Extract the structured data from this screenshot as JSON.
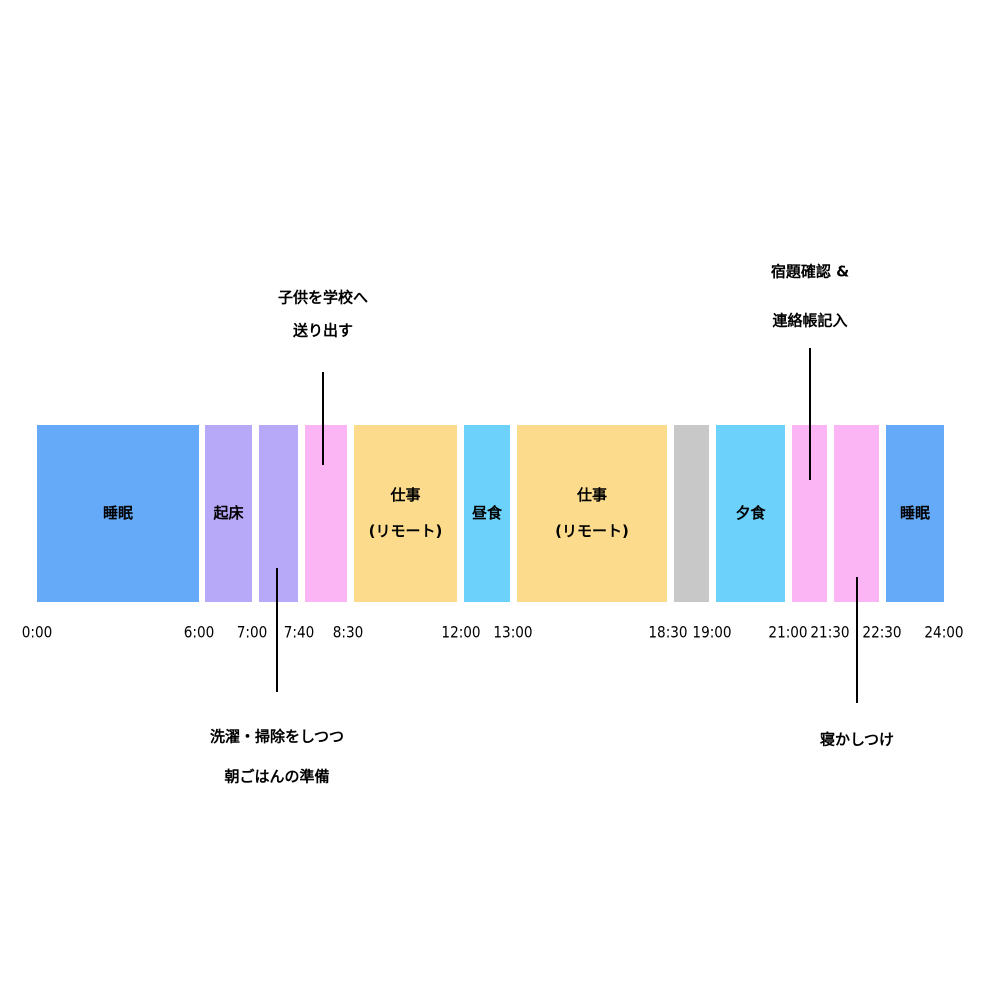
{
  "blocks": [
    {
      "lines": [
        "睡眠"
      ],
      "color": "#64aaf8"
    },
    {
      "lines": [
        "起床"
      ],
      "color": "#b8a8f8"
    },
    {
      "color": "#b8a8f8"
    },
    {
      "color": "#fbb4f4"
    },
    {
      "lines": [
        "仕事",
        "(リモート)"
      ],
      "color": "#fcdc8c"
    },
    {
      "lines": [
        "昼食"
      ],
      "color": "#6cd2fc"
    },
    {
      "lines": [
        "仕事",
        "(リモート)"
      ],
      "color": "#fcdc8c"
    },
    {
      "color": "#c8c8c8"
    },
    {
      "lines": [
        "夕食"
      ],
      "color": "#6cd2fc"
    },
    {
      "color": "#fbb4f4"
    },
    {
      "color": "#fbb4f4"
    },
    {
      "lines": [
        "睡眠"
      ],
      "color": "#64aaf8"
    }
  ],
  "time_labels": [
    "0:00",
    "6:00",
    "7:00",
    "7:40",
    "8:30",
    "12:00",
    "13:00",
    "18:30",
    "19:00",
    "21:00",
    "21:30",
    "22:30",
    "24:00"
  ],
  "callouts": [
    {
      "lines": [
        "子供を学校へ",
        "送り出す"
      ]
    },
    {
      "lines": [
        "宿題確認 &",
        "連絡帳記入"
      ]
    },
    {
      "lines": [
        "洗濯・掃除をしつつ",
        "朝ごはんの準備"
      ]
    },
    {
      "lines": [
        "寝かしつけ"
      ]
    }
  ]
}
